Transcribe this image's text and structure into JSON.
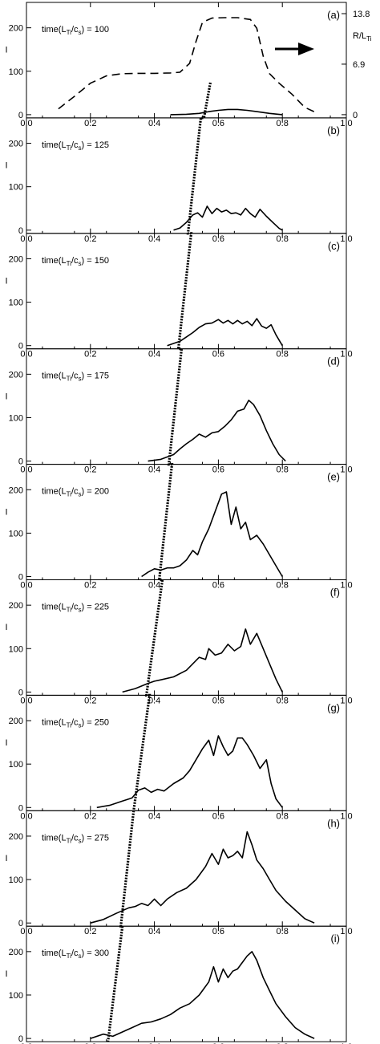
{
  "chart_data": {
    "type": "line",
    "xlim": [
      0,
      1.0
    ],
    "ylim": [
      0,
      240
    ],
    "xticks": [
      0.0,
      0.2,
      0.4,
      0.6,
      0.8,
      1.0
    ],
    "xtick_labels": [
      "0.0",
      "0.2",
      "0.4",
      "0.6",
      "0.8",
      "1.0"
    ],
    "yticks": [
      0,
      100,
      200
    ],
    "ytick_labels": [
      "0",
      "100",
      "200"
    ],
    "ylabel": "I",
    "time_prefix": "time(L",
    "time_sub1": "Ti",
    "time_mid": "/c",
    "time_sub2": "s",
    "time_suffix": ") = ",
    "right_axis": {
      "label_main": "R/L",
      "label_sub": "Ti",
      "ticks": [
        0,
        6.9,
        13.8
      ],
      "tick_labels": [
        "0",
        "6.9",
        "13.8"
      ]
    },
    "gradient_profile": {
      "style": "dashed",
      "x": [
        0.1,
        0.15,
        0.2,
        0.25,
        0.3,
        0.35,
        0.4,
        0.45,
        0.48,
        0.51,
        0.53,
        0.55,
        0.58,
        0.62,
        0.66,
        0.7,
        0.72,
        0.74,
        0.76,
        0.79,
        0.83,
        0.87,
        0.9
      ],
      "y_rlt": [
        0.8,
        2.5,
        4.3,
        5.3,
        5.6,
        5.65,
        5.65,
        5.7,
        5.8,
        7.0,
        10.0,
        12.6,
        13.2,
        13.25,
        13.25,
        13.0,
        11.8,
        8.0,
        5.6,
        4.3,
        2.8,
        1.0,
        0.4
      ]
    },
    "arrow_direction": "right",
    "front_line": {
      "style": "dotted-thick",
      "x_at_panel_top": [
        0.575,
        0.545,
        0.515,
        0.485,
        0.455,
        0.425,
        0.385,
        0.335,
        0.3
      ],
      "x_at_panel_bottom": [
        0.555,
        0.505,
        0.475,
        0.445,
        0.415,
        0.375,
        0.335,
        0.295,
        0.255
      ]
    },
    "panels": [
      {
        "letter": "(a)",
        "time": "100",
        "x": [
          0.45,
          0.5,
          0.54,
          0.57,
          0.6,
          0.63,
          0.66,
          0.69,
          0.72,
          0.76,
          0.8
        ],
        "y": [
          0,
          1,
          3,
          7,
          10,
          12,
          12,
          10,
          7,
          3,
          0
        ]
      },
      {
        "letter": "(b)",
        "time": "125",
        "x": [
          0.46,
          0.48,
          0.5,
          0.52,
          0.535,
          0.55,
          0.565,
          0.58,
          0.595,
          0.61,
          0.625,
          0.64,
          0.655,
          0.67,
          0.685,
          0.7,
          0.715,
          0.73,
          0.75,
          0.77,
          0.79,
          0.8
        ],
        "y": [
          0,
          5,
          18,
          35,
          40,
          30,
          55,
          38,
          50,
          42,
          46,
          38,
          40,
          35,
          50,
          38,
          30,
          48,
          32,
          18,
          4,
          0
        ]
      },
      {
        "letter": "(c)",
        "time": "150",
        "x": [
          0.44,
          0.46,
          0.48,
          0.5,
          0.52,
          0.54,
          0.56,
          0.58,
          0.6,
          0.615,
          0.63,
          0.645,
          0.66,
          0.675,
          0.69,
          0.705,
          0.72,
          0.735,
          0.75,
          0.765,
          0.78,
          0.8
        ],
        "y": [
          0,
          5,
          10,
          20,
          30,
          42,
          50,
          52,
          60,
          52,
          58,
          50,
          58,
          50,
          56,
          46,
          62,
          45,
          40,
          48,
          25,
          0
        ]
      },
      {
        "letter": "(d)",
        "time": "175",
        "x": [
          0.38,
          0.42,
          0.46,
          0.48,
          0.5,
          0.52,
          0.54,
          0.56,
          0.58,
          0.6,
          0.62,
          0.64,
          0.66,
          0.68,
          0.695,
          0.71,
          0.73,
          0.75,
          0.77,
          0.79,
          0.81
        ],
        "y": [
          0,
          4,
          15,
          28,
          40,
          50,
          62,
          55,
          65,
          68,
          80,
          95,
          115,
          120,
          140,
          130,
          105,
          70,
          40,
          15,
          0
        ]
      },
      {
        "letter": "(e)",
        "time": "200",
        "x": [
          0.36,
          0.38,
          0.4,
          0.42,
          0.44,
          0.46,
          0.48,
          0.5,
          0.52,
          0.535,
          0.55,
          0.57,
          0.59,
          0.61,
          0.625,
          0.64,
          0.655,
          0.67,
          0.685,
          0.7,
          0.72,
          0.74,
          0.76,
          0.78,
          0.8
        ],
        "y": [
          0,
          10,
          18,
          15,
          20,
          20,
          25,
          38,
          60,
          50,
          80,
          110,
          150,
          190,
          195,
          120,
          160,
          110,
          125,
          85,
          95,
          75,
          50,
          25,
          0
        ]
      },
      {
        "letter": "(f)",
        "time": "225",
        "x": [
          0.3,
          0.34,
          0.38,
          0.4,
          0.42,
          0.46,
          0.5,
          0.52,
          0.54,
          0.56,
          0.57,
          0.59,
          0.61,
          0.63,
          0.65,
          0.67,
          0.685,
          0.7,
          0.72,
          0.74,
          0.76,
          0.78,
          0.8
        ],
        "y": [
          0,
          8,
          20,
          25,
          28,
          35,
          50,
          65,
          80,
          75,
          100,
          85,
          90,
          110,
          95,
          105,
          145,
          110,
          135,
          100,
          65,
          30,
          0
        ]
      },
      {
        "letter": "(g)",
        "time": "250",
        "x": [
          0.22,
          0.26,
          0.3,
          0.33,
          0.35,
          0.37,
          0.39,
          0.41,
          0.43,
          0.46,
          0.49,
          0.51,
          0.53,
          0.55,
          0.57,
          0.585,
          0.6,
          0.615,
          0.63,
          0.645,
          0.66,
          0.675,
          0.69,
          0.71,
          0.73,
          0.75,
          0.765,
          0.78,
          0.8
        ],
        "y": [
          0,
          5,
          15,
          22,
          40,
          45,
          35,
          42,
          38,
          55,
          68,
          85,
          110,
          135,
          155,
          120,
          165,
          140,
          120,
          130,
          160,
          160,
          145,
          120,
          90,
          110,
          55,
          20,
          0
        ]
      },
      {
        "letter": "(h)",
        "time": "275",
        "x": [
          0.2,
          0.24,
          0.28,
          0.32,
          0.34,
          0.36,
          0.38,
          0.4,
          0.42,
          0.44,
          0.47,
          0.5,
          0.53,
          0.56,
          0.58,
          0.6,
          0.615,
          0.63,
          0.645,
          0.66,
          0.675,
          0.69,
          0.705,
          0.72,
          0.74,
          0.76,
          0.78,
          0.81,
          0.84,
          0.87,
          0.9
        ],
        "y": [
          0,
          8,
          22,
          35,
          38,
          45,
          40,
          55,
          40,
          55,
          70,
          80,
          100,
          130,
          160,
          135,
          170,
          150,
          155,
          165,
          150,
          210,
          180,
          145,
          125,
          100,
          75,
          50,
          30,
          10,
          0
        ]
      },
      {
        "letter": "(i)",
        "time": "300",
        "x": [
          0.2,
          0.24,
          0.27,
          0.3,
          0.33,
          0.36,
          0.39,
          0.42,
          0.45,
          0.48,
          0.51,
          0.54,
          0.57,
          0.585,
          0.6,
          0.615,
          0.63,
          0.645,
          0.66,
          0.675,
          0.69,
          0.705,
          0.72,
          0.74,
          0.76,
          0.78,
          0.81,
          0.84,
          0.87,
          0.9
        ],
        "y": [
          0,
          10,
          5,
          15,
          25,
          35,
          38,
          45,
          55,
          70,
          80,
          100,
          130,
          165,
          130,
          160,
          140,
          155,
          160,
          175,
          190,
          200,
          180,
          140,
          110,
          80,
          50,
          25,
          10,
          0
        ]
      }
    ]
  }
}
